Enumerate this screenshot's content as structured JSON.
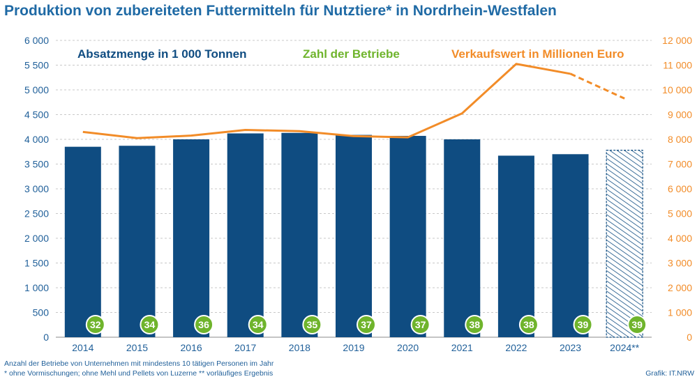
{
  "title": "Produktion von zubereiteten Futtermitteln für Nutztiere* in Nordrhein-Westfalen",
  "footnotes": {
    "line1": "Anzahl der Betriebe von Unternehmen mit mindestens 10 tätigen Personen im Jahr",
    "line2": "* ohne Vormischungen; ohne Mehl und Pellets von Luzerne  ** vorläufiges Ergebnis"
  },
  "credit": "Grafik: IT.NRW",
  "colors": {
    "bar": "#0f4c81",
    "line": "#f28c28",
    "badge": "#6fb42c",
    "title": "#1f6aa5",
    "axis_left": "#1f5f99",
    "axis_right": "#f28c28",
    "grid": "#c8c8c8"
  },
  "chart_data": {
    "type": "bar",
    "categories": [
      "2014",
      "2015",
      "2016",
      "2017",
      "2018",
      "2019",
      "2020",
      "2021",
      "2022",
      "2023",
      "2024**"
    ],
    "y_left": {
      "min": 0,
      "max": 6000,
      "step": 500,
      "tick_labels": [
        "0",
        "500",
        "1 000",
        "1 500",
        "2 000",
        "2 500",
        "3 000",
        "3 500",
        "4 000",
        "4 500",
        "5 000",
        "5 500",
        "6 000"
      ]
    },
    "y_right": {
      "min": 0,
      "max": 12000,
      "step": 1000,
      "tick_labels": [
        "0",
        "1 000",
        "2 000",
        "3 000",
        "4 000",
        "5 000",
        "6 000",
        "7 000",
        "8 000",
        "9 000",
        "10 000",
        "11 000",
        "12 000"
      ]
    },
    "grid": true,
    "series": [
      {
        "name": "Absatzmenge in 1 000 Tonnen",
        "type": "bar",
        "axis": "left",
        "values": [
          3850,
          3870,
          4000,
          4120,
          4130,
          4090,
          4070,
          4000,
          3670,
          3700,
          3780
        ],
        "provisional_index": 10
      },
      {
        "name": "Zahl der Betriebe",
        "type": "badge",
        "values": [
          32,
          34,
          36,
          34,
          35,
          37,
          37,
          38,
          38,
          39,
          39
        ]
      },
      {
        "name": "Verkaufswert in Millionen Euro",
        "type": "line",
        "axis": "right",
        "values": [
          8300,
          8050,
          8150,
          8380,
          8330,
          8130,
          8080,
          9050,
          11050,
          10650,
          9650
        ],
        "dashed_from_index": 9
      }
    ]
  }
}
